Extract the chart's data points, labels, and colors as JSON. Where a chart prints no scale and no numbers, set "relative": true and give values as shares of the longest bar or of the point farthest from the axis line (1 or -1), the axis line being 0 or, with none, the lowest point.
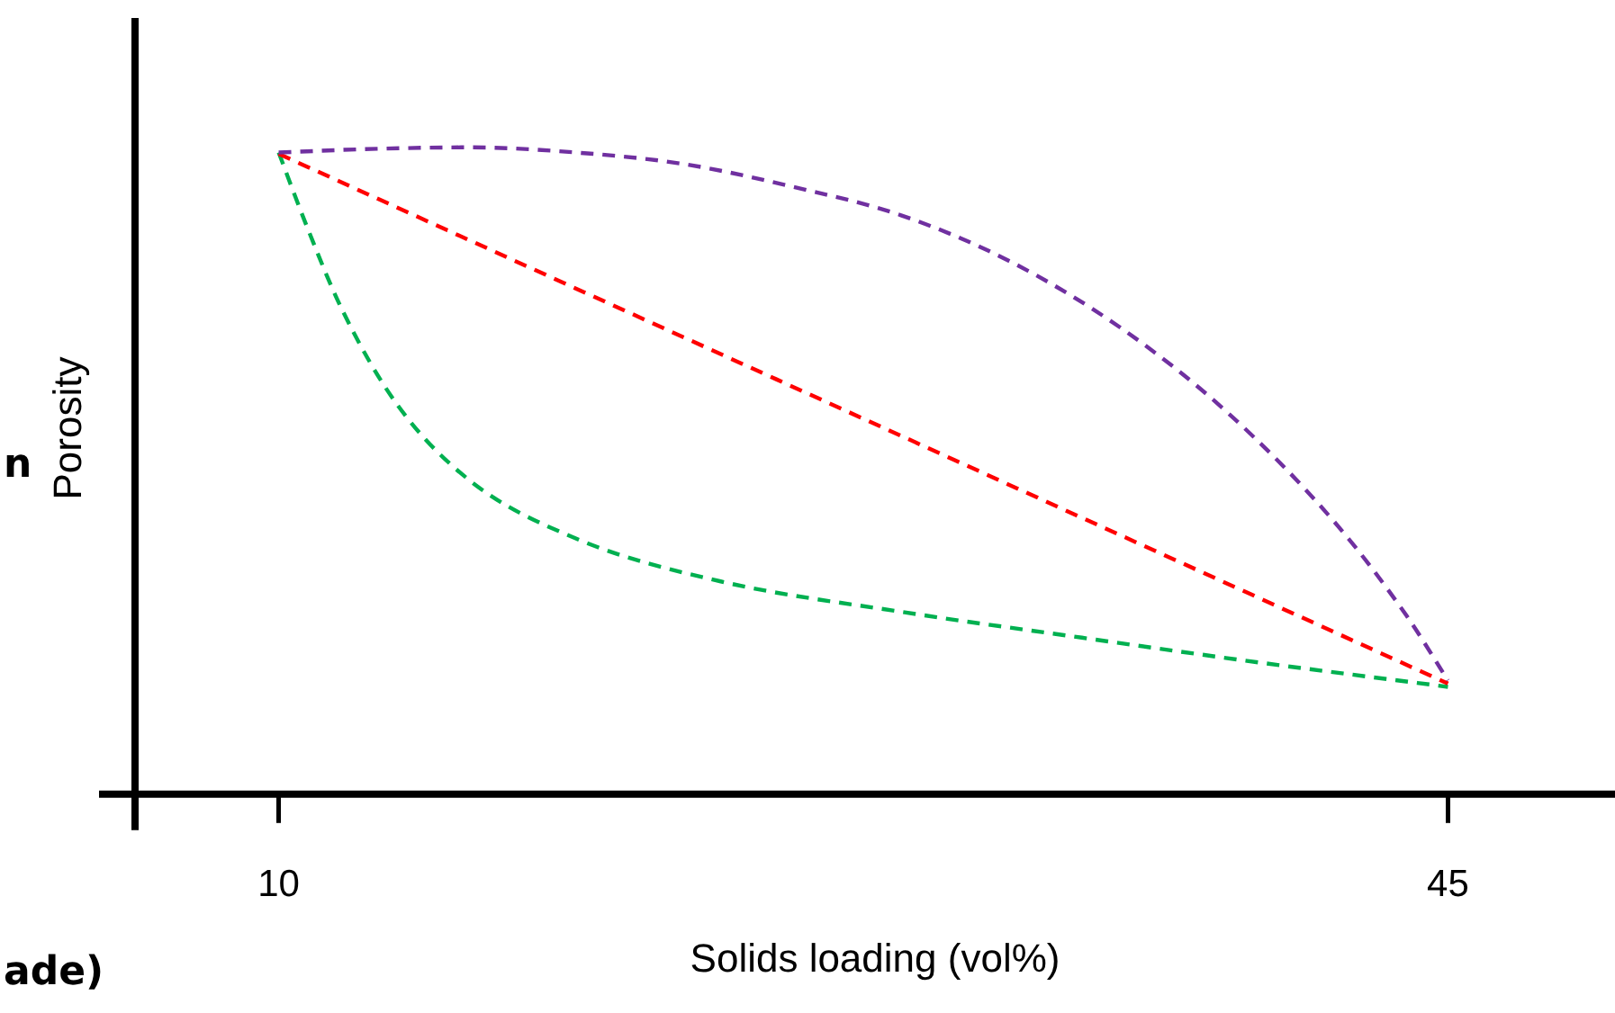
{
  "chart_data": {
    "type": "line",
    "xlabel": "Solids loading (vol%)",
    "ylabel": "Porosity",
    "relative": true,
    "xlim": [
      5.7,
      50
    ],
    "xticks": [
      10,
      45
    ],
    "grid": false,
    "legend": false,
    "marker": "none",
    "line_style": "dashed",
    "tick_labels": "x",
    "annotations": [
      "n",
      "ade)"
    ],
    "series": [
      {
        "color": "#7030a0",
        "x": [
          10,
          12.43,
          15.67,
          18.91,
          22.15,
          25.39,
          28.63,
          31.88,
          35.12,
          38.36,
          41.6,
          43.76,
          45
        ],
        "values": [
          0.992,
          0.997,
          1.0,
          0.992,
          0.974,
          0.939,
          0.895,
          0.824,
          0.724,
          0.592,
          0.421,
          0.276,
          0.176
        ]
      },
      {
        "color": "#ff0000",
        "x": [
          10,
          45
        ],
        "values": [
          0.99,
          0.171
        ]
      },
      {
        "color": "#00b050",
        "x": [
          10,
          10.81,
          11.89,
          13.51,
          15.67,
          18.91,
          23.23,
          28.63,
          34.04,
          39.44,
          45
        ],
        "values": [
          0.992,
          0.882,
          0.75,
          0.605,
          0.487,
          0.395,
          0.329,
          0.282,
          0.242,
          0.203,
          0.166
        ]
      }
    ]
  }
}
